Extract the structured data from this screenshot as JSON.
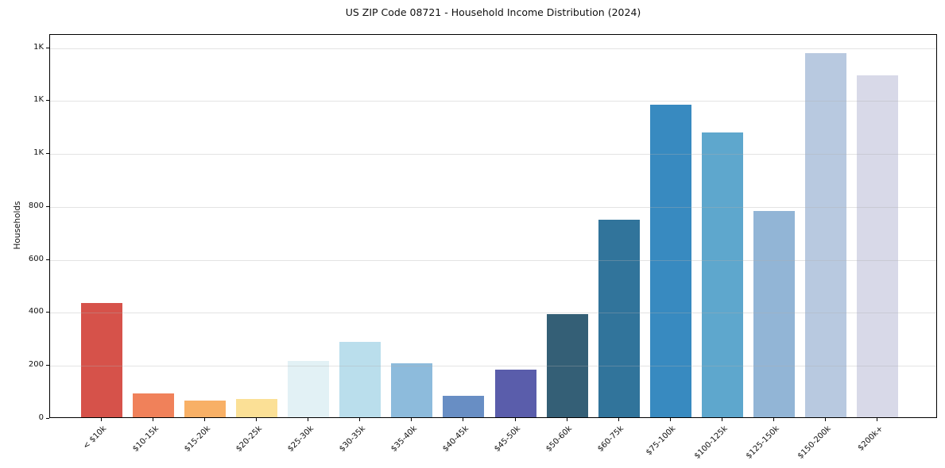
{
  "title": "US ZIP Code 08721 - Household Income Distribution (2024)",
  "chart_data": {
    "type": "bar",
    "title": "US ZIP Code 08721 - Household Income Distribution (2024)",
    "xlabel": "",
    "ylabel": "Households",
    "categories": [
      "< $10k",
      "$10-15k",
      "$15-20k",
      "$20-25k",
      "$25-30k",
      "$30-35k",
      "$35-40k",
      "$40-45k",
      "$45-50k",
      "$50-60k",
      "$60-75k",
      "$75-100k",
      "$100-125k",
      "$125-150k",
      "$150-200k",
      "$200k+"
    ],
    "values": [
      430,
      90,
      64,
      70,
      214,
      285,
      205,
      81,
      181,
      390,
      745,
      1180,
      1075,
      778,
      1375,
      1290
    ],
    "bar_colors": [
      "#d6524a",
      "#f0815a",
      "#f8b066",
      "#fbe096",
      "#e2f1f5",
      "#badeec",
      "#8dbbdc",
      "#688ec4",
      "#5a5dab",
      "#345f76",
      "#31749b",
      "#388ac0",
      "#5ea7cd",
      "#92b5d6",
      "#b8c9e0",
      "#d8d9e8"
    ],
    "ylim": [
      0,
      1450
    ],
    "yticks": {
      "values": [
        0,
        200,
        400,
        600,
        800,
        1000,
        1200,
        1400
      ],
      "labels": [
        "0",
        "200",
        "400",
        "600",
        "800",
        "1K",
        "1K",
        "1K"
      ]
    },
    "grid": "horizontal",
    "legend": "none",
    "axis_color": "#000000",
    "grid_color": "#b0b0b0",
    "background": "#ffffff"
  }
}
